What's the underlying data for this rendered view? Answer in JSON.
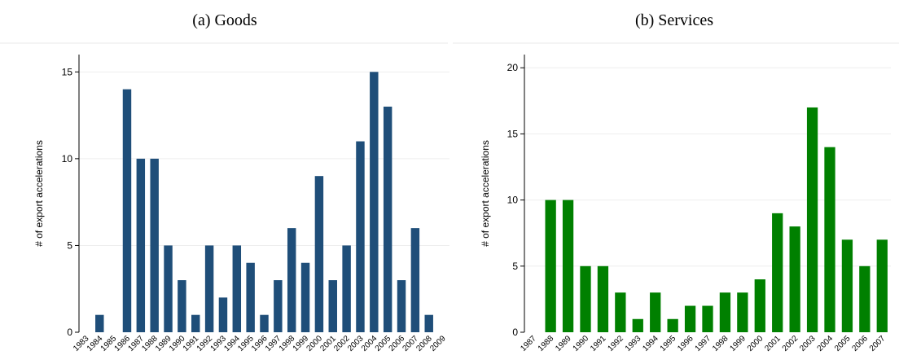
{
  "chart_data": [
    {
      "type": "bar",
      "title": "(a) Goods",
      "ylabel": "# of export accelerations",
      "xlabel": "",
      "ylim": [
        0,
        16
      ],
      "yticks": [
        0,
        5,
        10,
        15
      ],
      "color": "#1f4e79",
      "categories": [
        "1983",
        "1984",
        "1985",
        "1986",
        "1987",
        "1988",
        "1989",
        "1990",
        "1991",
        "1992",
        "1993",
        "1994",
        "1995",
        "1996",
        "1997",
        "1998",
        "1999",
        "2000",
        "2001",
        "2002",
        "2003",
        "2004",
        "2005",
        "2006",
        "2007",
        "2008",
        "2009"
      ],
      "values": [
        0,
        1,
        0,
        14,
        10,
        10,
        5,
        3,
        1,
        5,
        2,
        5,
        4,
        1,
        3,
        6,
        4,
        9,
        3,
        5,
        11,
        15,
        13,
        3,
        6,
        1,
        0
      ]
    },
    {
      "type": "bar",
      "title": "(b) Services",
      "ylabel": "# of export accelerations",
      "xlabel": "",
      "ylim": [
        0,
        21
      ],
      "yticks": [
        0,
        5,
        10,
        15,
        20
      ],
      "color": "#008000",
      "categories": [
        "1987",
        "1988",
        "1989",
        "1990",
        "1991",
        "1992",
        "1993",
        "1994",
        "1995",
        "1996",
        "1997",
        "1998",
        "1999",
        "2000",
        "2001",
        "2002",
        "2003",
        "2004",
        "2005",
        "2006",
        "2007"
      ],
      "values": [
        0,
        10,
        10,
        5,
        5,
        3,
        1,
        3,
        1,
        2,
        2,
        3,
        3,
        4,
        9,
        8,
        17,
        14,
        7,
        5,
        7
      ]
    }
  ]
}
